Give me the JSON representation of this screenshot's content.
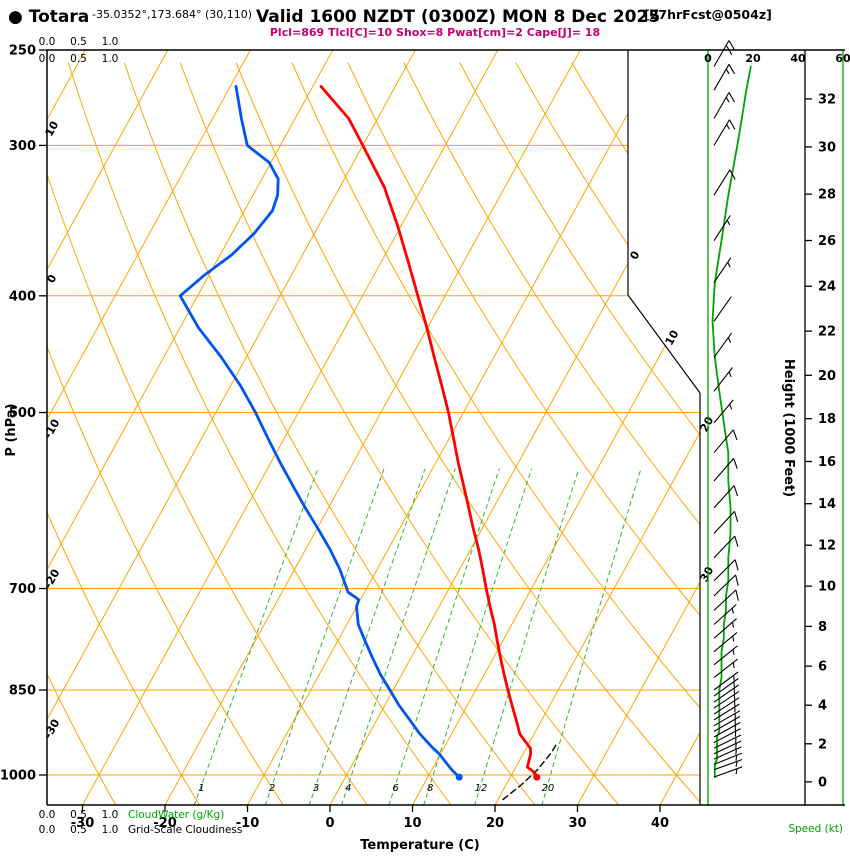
{
  "header": {
    "station_label": "● Totara",
    "coords": "-35.0352°,173.684° (30,110)",
    "valid": "Valid 1600 NZDT (0300Z) MON 8 Dec 2025",
    "fcst_tag": "[27hrFcst@0504z]",
    "indices": "Plcl=869 Tlcl[C]=10 Shox=8 Pwat[cm]=2 Cape[J]= 18"
  },
  "colors": {
    "grid": "#FFA500",
    "green": "#00A400",
    "mixing_green": "#2DB52D",
    "temperature_red": "#FF0000",
    "dewpoint_blue": "#0055EE",
    "indices_magenta": "#C50074",
    "frame_black": "#000000"
  },
  "chart_data": {
    "type": "skewt_log_p_sounding",
    "pressure_axis": {
      "label": "P (hPa)",
      "scale": "log",
      "ticks": [
        250,
        300,
        400,
        500,
        700,
        850,
        1000
      ],
      "range": [
        250,
        1060
      ]
    },
    "temp_axis": {
      "label": "Temperature (C)",
      "ticks": [
        -30,
        -20,
        -10,
        0,
        10,
        20,
        30,
        40
      ]
    },
    "height_axis": {
      "label": "Height (1000 Feet)",
      "ticks": [
        0,
        2,
        4,
        6,
        8,
        10,
        12,
        14,
        16,
        18,
        20,
        22,
        24,
        26,
        28,
        30,
        32
      ]
    },
    "speed_axis": {
      "label": "Speed (kt)",
      "ticks": [
        0,
        20,
        40,
        60
      ]
    },
    "cloudwater_axis": {
      "label": "CloudWater (g/Kg)",
      "ticks": [
        "0.0",
        "0.5",
        "1.0"
      ]
    },
    "cloudiness_axis": {
      "label": "Grid-Scale Cloudiness",
      "ticks": [
        "0.0",
        "0.5",
        "1.0"
      ]
    },
    "isotherms": {
      "min": -120,
      "max": 40,
      "step": 10
    },
    "dry_adiabats": {
      "min": -30,
      "max": 150,
      "step": 10
    },
    "isotherm_labels_left": [
      10,
      0,
      -10,
      -20,
      -30
    ],
    "isotherm_labels_right": [
      0,
      10,
      20,
      30
    ],
    "mixing_ratio_lines": [
      1,
      2,
      3,
      4,
      6,
      8,
      12,
      20
    ],
    "surface": {
      "pressure_hpa": 1004,
      "temp_c": 23.2,
      "dewpoint_c": 13.8
    },
    "temperature_profile": {
      "units": [
        "hPa",
        "C"
      ],
      "points": [
        [
          1004,
          23.2
        ],
        [
          995,
          22.6
        ],
        [
          985,
          21.4
        ],
        [
          975,
          21.2
        ],
        [
          960,
          20.9
        ],
        [
          950,
          20.5
        ],
        [
          925,
          18.3
        ],
        [
          900,
          16.9
        ],
        [
          875,
          15.4
        ],
        [
          850,
          13.9
        ],
        [
          825,
          12.4
        ],
        [
          800,
          10.9
        ],
        [
          775,
          9.4
        ],
        [
          750,
          7.9
        ],
        [
          725,
          6.2
        ],
        [
          700,
          4.5
        ],
        [
          675,
          2.8
        ],
        [
          650,
          1.0
        ],
        [
          625,
          -1.0
        ],
        [
          600,
          -3.0
        ],
        [
          575,
          -5.1
        ],
        [
          550,
          -7.3
        ],
        [
          525,
          -9.5
        ],
        [
          500,
          -11.8
        ],
        [
          475,
          -14.4
        ],
        [
          450,
          -17.2
        ],
        [
          425,
          -20.1
        ],
        [
          400,
          -23.3
        ],
        [
          375,
          -26.7
        ],
        [
          350,
          -30.4
        ],
        [
          325,
          -34.6
        ],
        [
          300,
          -40.0
        ],
        [
          285,
          -43.5
        ],
        [
          268,
          -49.0
        ]
      ]
    },
    "dewpoint_profile": {
      "units": [
        "hPa",
        "C"
      ],
      "points": [
        [
          1004,
          13.8
        ],
        [
          990,
          12.4
        ],
        [
          975,
          11.1
        ],
        [
          960,
          9.8
        ],
        [
          950,
          8.7
        ],
        [
          925,
          6.2
        ],
        [
          900,
          4.0
        ],
        [
          875,
          1.7
        ],
        [
          850,
          -0.4
        ],
        [
          825,
          -2.6
        ],
        [
          800,
          -4.6
        ],
        [
          775,
          -6.6
        ],
        [
          750,
          -8.6
        ],
        [
          725,
          -10.0
        ],
        [
          715,
          -10.2
        ],
        [
          705,
          -12.0
        ],
        [
          700,
          -12.4
        ],
        [
          675,
          -14.5
        ],
        [
          650,
          -17.0
        ],
        [
          625,
          -19.8
        ],
        [
          600,
          -22.8
        ],
        [
          575,
          -25.8
        ],
        [
          550,
          -28.9
        ],
        [
          525,
          -32.0
        ],
        [
          500,
          -35.2
        ],
        [
          475,
          -38.8
        ],
        [
          450,
          -43.0
        ],
        [
          425,
          -47.8
        ],
        [
          400,
          -52.1
        ],
        [
          385,
          -50.6
        ],
        [
          370,
          -48.6
        ],
        [
          355,
          -47.3
        ],
        [
          340,
          -46.6
        ],
        [
          330,
          -47.0
        ],
        [
          320,
          -48.0
        ],
        [
          310,
          -50.2
        ],
        [
          300,
          -54.0
        ],
        [
          285,
          -56.5
        ],
        [
          268,
          -59.3
        ]
      ]
    },
    "parcel_path": {
      "units": [
        "hPa",
        "C"
      ],
      "points": [
        [
          1048,
          20.6
        ],
        [
          1020,
          21.8
        ],
        [
          990,
          22.8
        ],
        [
          960,
          23.3
        ],
        [
          945,
          23.4
        ]
      ]
    },
    "wind_profile": {
      "units": [
        "hPa",
        "deg_from",
        "kt"
      ],
      "points": [
        [
          1004,
          70,
          3
        ],
        [
          990,
          70,
          3
        ],
        [
          980,
          68,
          3
        ],
        [
          970,
          66,
          4
        ],
        [
          960,
          65,
          4
        ],
        [
          950,
          64,
          4
        ],
        [
          940,
          62,
          4
        ],
        [
          930,
          61,
          4
        ],
        [
          920,
          60,
          5
        ],
        [
          910,
          60,
          5
        ],
        [
          900,
          58,
          5
        ],
        [
          890,
          57,
          5
        ],
        [
          880,
          56,
          5
        ],
        [
          870,
          55,
          5
        ],
        [
          860,
          54,
          5
        ],
        [
          850,
          53,
          5
        ],
        [
          830,
          52,
          6
        ],
        [
          810,
          51,
          6
        ],
        [
          790,
          50,
          6
        ],
        [
          770,
          49,
          7
        ],
        [
          750,
          48,
          7
        ],
        [
          730,
          47,
          8
        ],
        [
          710,
          46,
          8
        ],
        [
          690,
          45,
          9
        ],
        [
          660,
          44,
          9
        ],
        [
          630,
          43,
          10
        ],
        [
          600,
          42,
          10
        ],
        [
          570,
          41,
          9
        ],
        [
          540,
          40,
          9
        ],
        [
          510,
          40,
          7
        ],
        [
          480,
          38,
          5
        ],
        [
          450,
          36,
          3
        ],
        [
          420,
          35,
          2
        ],
        [
          390,
          34,
          3
        ],
        [
          360,
          33,
          6
        ],
        [
          330,
          32,
          9
        ],
        [
          300,
          31,
          13
        ],
        [
          285,
          30,
          15
        ],
        [
          270,
          30,
          17
        ],
        [
          258,
          30,
          19
        ]
      ]
    }
  }
}
